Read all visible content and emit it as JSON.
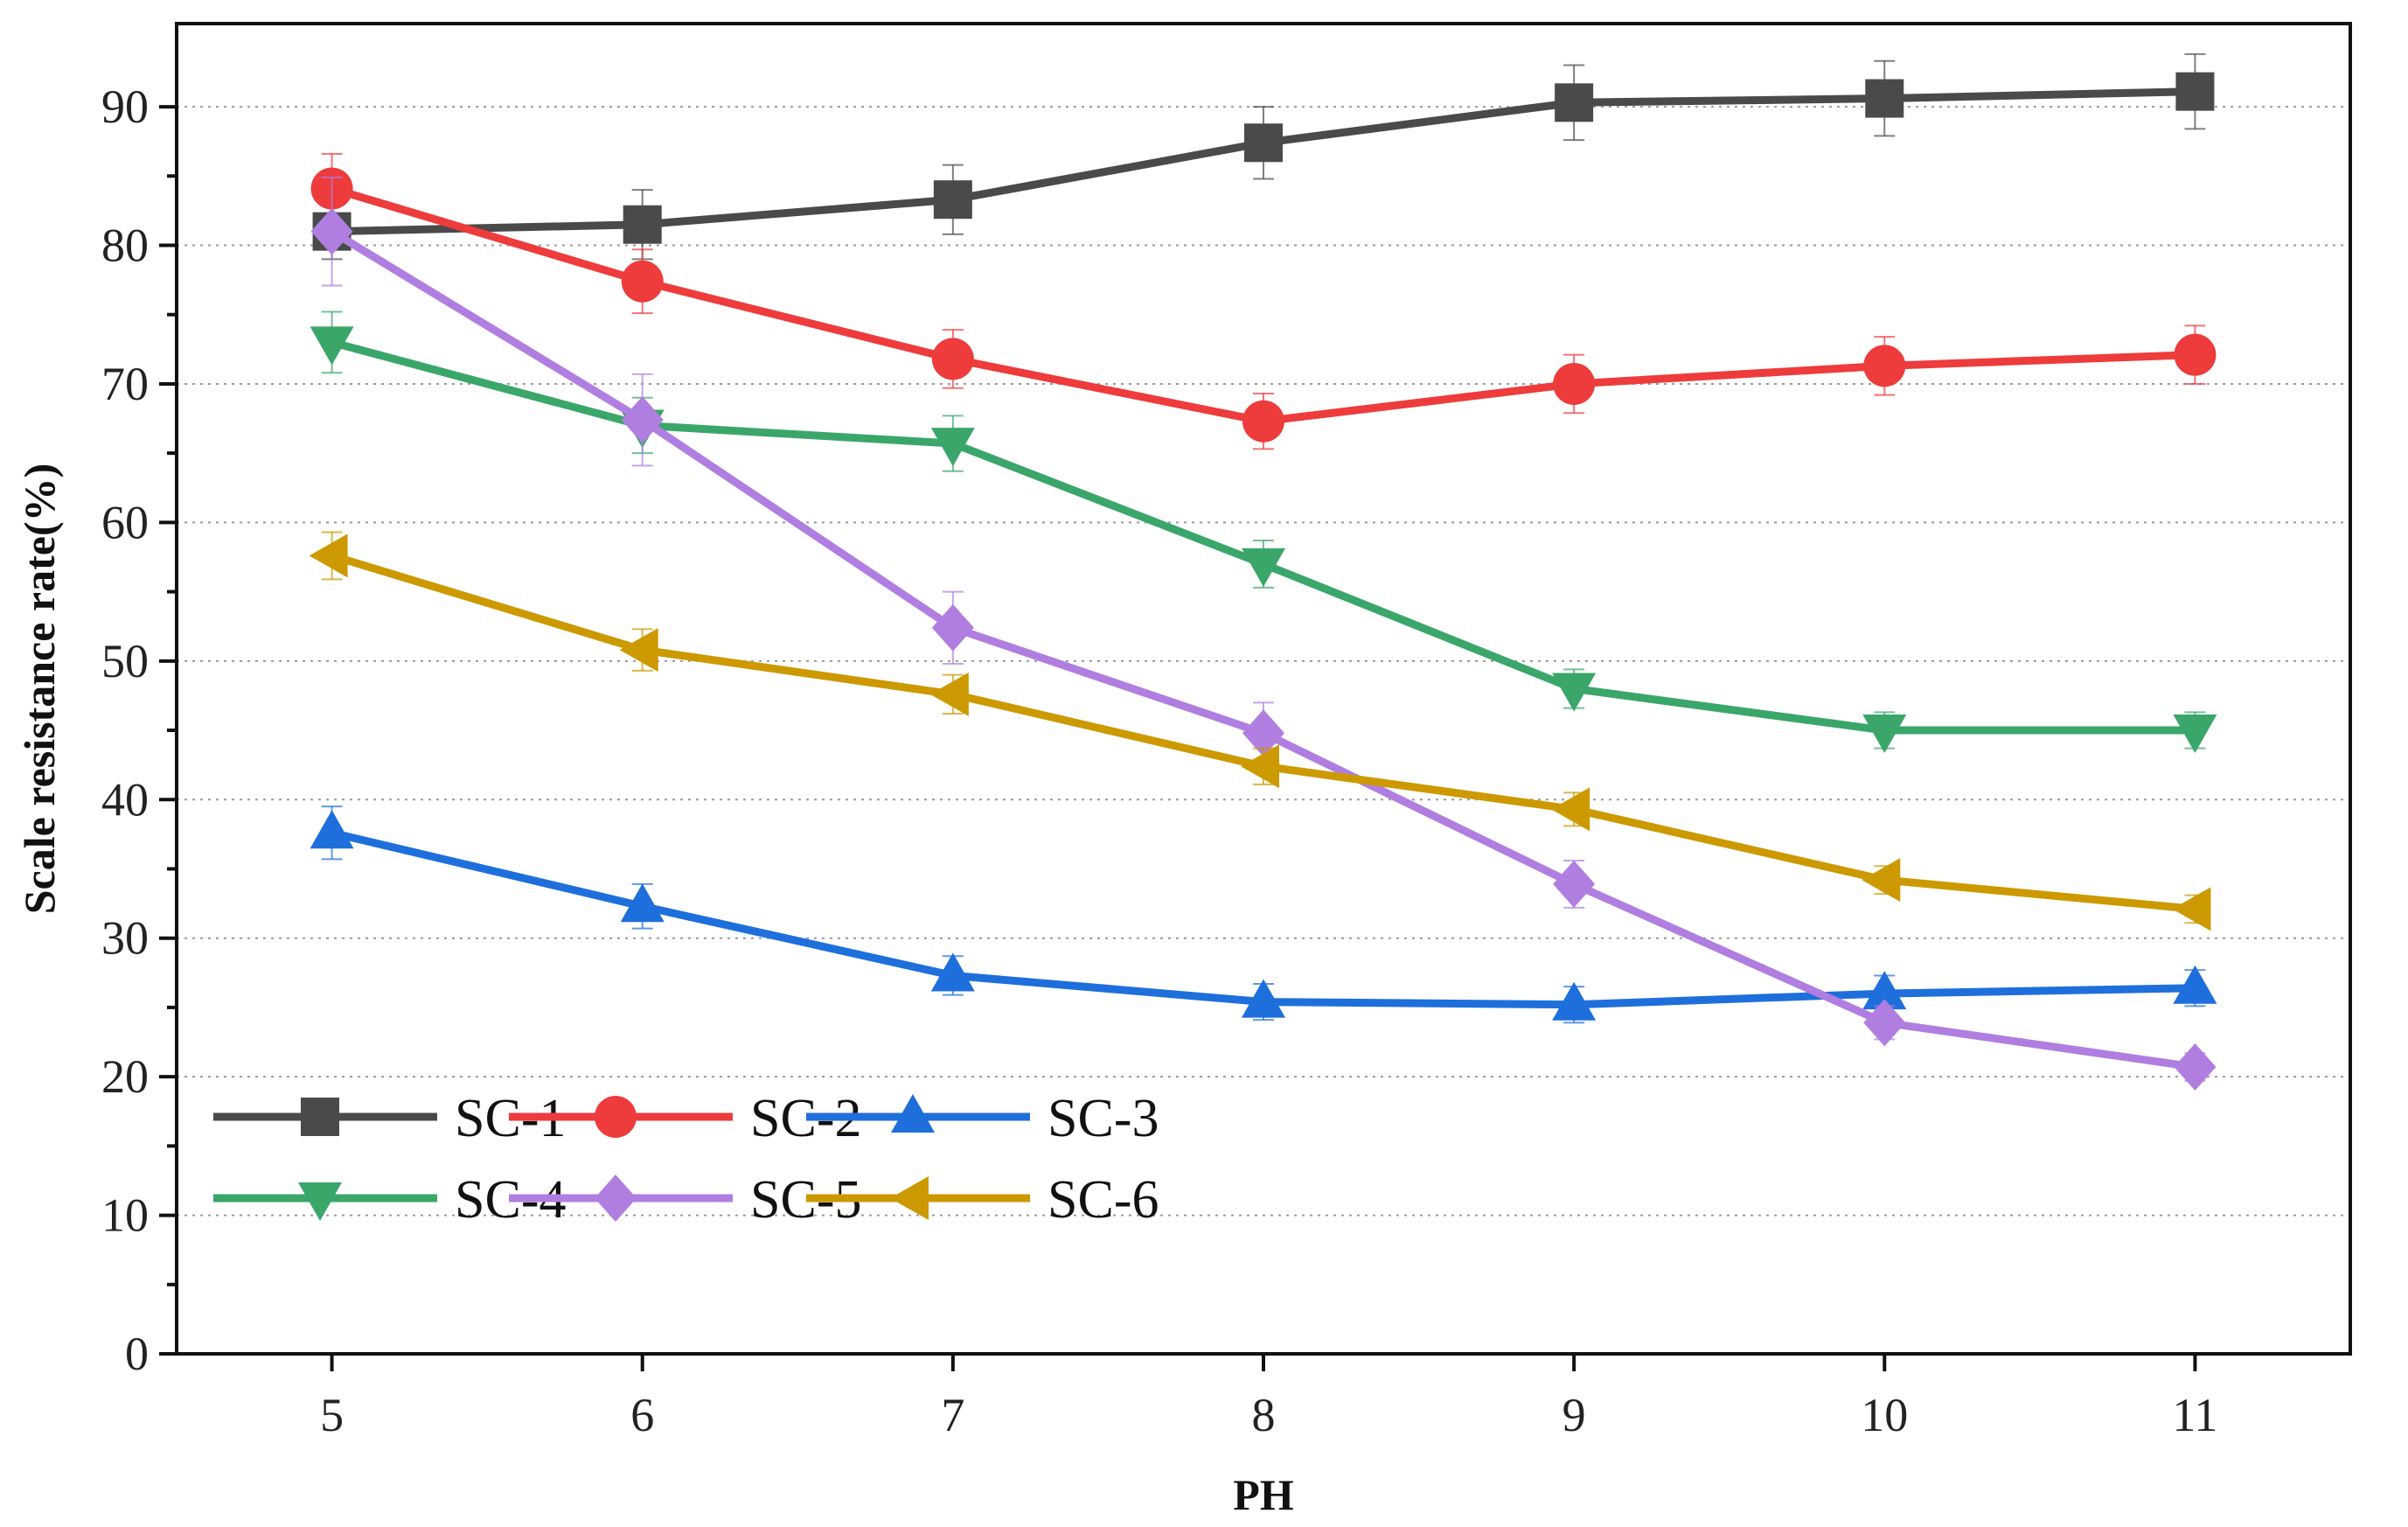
{
  "chart_data": {
    "type": "line",
    "title": "",
    "xlabel": "PH",
    "ylabel": "Scale resistance rate(%)",
    "x": [
      5,
      6,
      7,
      8,
      9,
      10,
      11
    ],
    "xlim": [
      4.5,
      11.5
    ],
    "ylim": [
      0,
      96
    ],
    "xticks": [
      "5",
      "6",
      "7",
      "8",
      "9",
      "10",
      "11"
    ],
    "yticks": [
      "0",
      "10",
      "20",
      "30",
      "40",
      "50",
      "60",
      "70",
      "80",
      "90"
    ],
    "grid": "horizontal dotted",
    "legend_position": "bottom-left",
    "series": [
      {
        "name": "SC-1",
        "color": "#4a4a4a",
        "marker": "square",
        "values": [
          81.0,
          81.5,
          83.3,
          87.4,
          90.3,
          90.6,
          91.1
        ],
        "errors": [
          2.0,
          2.5,
          2.5,
          2.6,
          2.7,
          2.7,
          2.7
        ]
      },
      {
        "name": "SC-2",
        "color": "#ee3b3b",
        "marker": "circle",
        "values": [
          84.1,
          77.4,
          71.8,
          67.3,
          70.0,
          71.3,
          72.1
        ],
        "errors": [
          2.5,
          2.3,
          2.1,
          2.0,
          2.1,
          2.1,
          2.1
        ]
      },
      {
        "name": "SC-3",
        "color": "#1e6fdc",
        "marker": "triangle-up",
        "values": [
          37.6,
          32.3,
          27.3,
          25.4,
          25.2,
          26.0,
          26.4
        ],
        "errors": [
          1.9,
          1.6,
          1.4,
          1.3,
          1.3,
          1.3,
          1.3
        ]
      },
      {
        "name": "SC-4",
        "color": "#3aa66a",
        "marker": "triangle-down",
        "values": [
          73.0,
          67.0,
          65.7,
          57.0,
          48.0,
          45.0,
          45.0
        ],
        "errors": [
          2.2,
          2.0,
          2.0,
          1.7,
          1.4,
          1.3,
          1.3
        ]
      },
      {
        "name": "SC-5",
        "color": "#b07ee0",
        "marker": "diamond",
        "values": [
          81.0,
          67.4,
          52.4,
          44.8,
          33.9,
          23.9,
          20.7
        ],
        "errors": [
          3.9,
          3.3,
          2.6,
          2.2,
          1.7,
          1.2,
          1.0
        ]
      },
      {
        "name": "SC-6",
        "color": "#cc9900",
        "marker": "triangle-left",
        "values": [
          57.6,
          50.8,
          47.6,
          42.4,
          39.3,
          34.2,
          32.1
        ],
        "errors": [
          1.7,
          1.5,
          1.4,
          1.3,
          1.2,
          1.0,
          1.0
        ]
      }
    ]
  }
}
